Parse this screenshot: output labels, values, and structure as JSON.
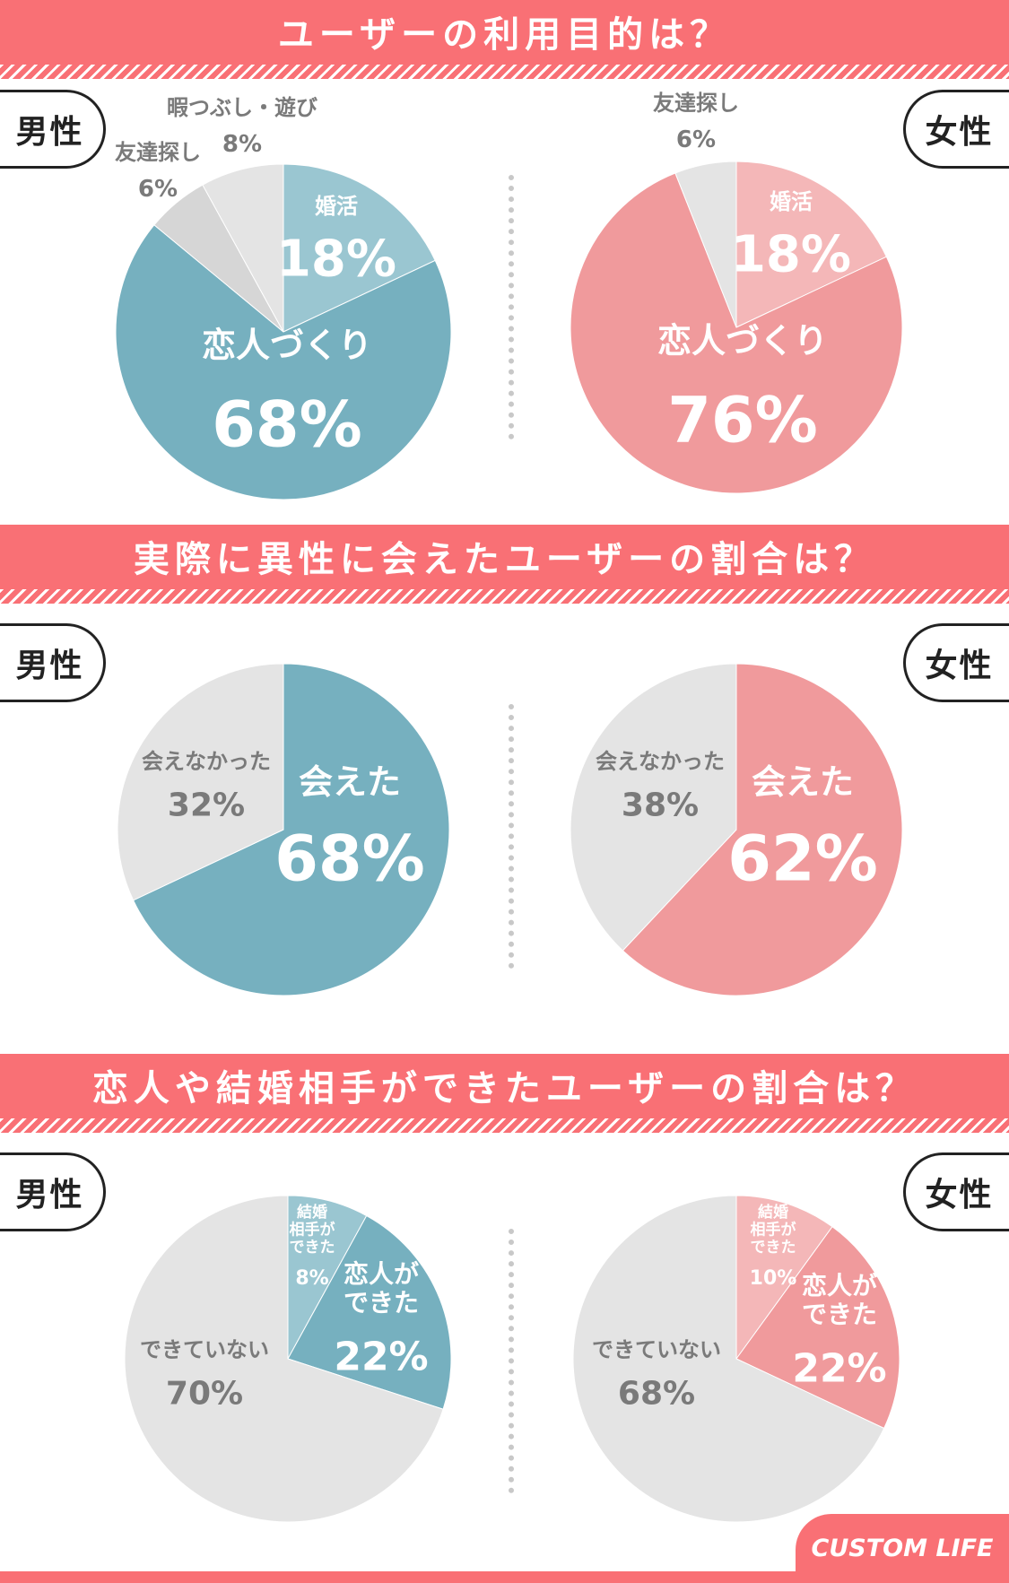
{
  "sections": [
    {
      "title": "ユーザーの利用目的は？",
      "male_label": "男性",
      "female_label": "女性"
    },
    {
      "title": "実際に異性に会えたユーザーの割合は？",
      "male_label": "男性",
      "female_label": "女性"
    },
    {
      "title": "恋人や結婚相手ができたユーザーの割合は？",
      "male_label": "男性",
      "female_label": "女性"
    }
  ],
  "brand": "CUSTOM LIFE",
  "colors": {
    "banner": "#f97075",
    "male_dark": "#76b0bf",
    "male_light": "#9ac6d1",
    "female_dark": "#f09a9c",
    "female_light": "#f4b7b8",
    "gray": "#e4e4e4",
    "gray2": "#d6d6d6",
    "gray_text": "#7a7a7a"
  },
  "chart_data": [
    {
      "type": "pie",
      "title": "ユーザーの利用目的は？",
      "group": "男性",
      "slices": [
        {
          "label": "婚活",
          "value": 18,
          "display": "18%"
        },
        {
          "label": "恋人づくり",
          "value": 68,
          "display": "68%"
        },
        {
          "label": "友達探し",
          "value": 6,
          "display": "6%"
        },
        {
          "label": "暇つぶし・遊び",
          "value": 8,
          "display": "8%"
        }
      ]
    },
    {
      "type": "pie",
      "title": "ユーザーの利用目的は？",
      "group": "女性",
      "slices": [
        {
          "label": "婚活",
          "value": 18,
          "display": "18%"
        },
        {
          "label": "恋人づくり",
          "value": 76,
          "display": "76%"
        },
        {
          "label": "友達探し",
          "value": 6,
          "display": "6%"
        }
      ]
    },
    {
      "type": "pie",
      "title": "実際に異性に会えたユーザーの割合は？",
      "group": "男性",
      "slices": [
        {
          "label": "会えた",
          "value": 68,
          "display": "68%"
        },
        {
          "label": "会えなかった",
          "value": 32,
          "display": "32%"
        }
      ]
    },
    {
      "type": "pie",
      "title": "実際に異性に会えたユーザーの割合は？",
      "group": "女性",
      "slices": [
        {
          "label": "会えた",
          "value": 62,
          "display": "62%"
        },
        {
          "label": "会えなかった",
          "value": 38,
          "display": "38%"
        }
      ]
    },
    {
      "type": "pie",
      "title": "恋人や結婚相手ができたユーザーの割合は？",
      "group": "男性",
      "slices": [
        {
          "label": "結婚相手ができた",
          "value": 8,
          "display": "8%"
        },
        {
          "label": "恋人ができた",
          "value": 22,
          "display": "22%"
        },
        {
          "label": "できていない",
          "value": 70,
          "display": "70%"
        }
      ]
    },
    {
      "type": "pie",
      "title": "恋人や結婚相手ができたユーザーの割合は？",
      "group": "女性",
      "slices": [
        {
          "label": "結婚相手ができた",
          "value": 10,
          "display": "10%"
        },
        {
          "label": "恋人ができた",
          "value": 22,
          "display": "22%"
        },
        {
          "label": "できていない",
          "value": 68,
          "display": "68%"
        }
      ]
    }
  ]
}
